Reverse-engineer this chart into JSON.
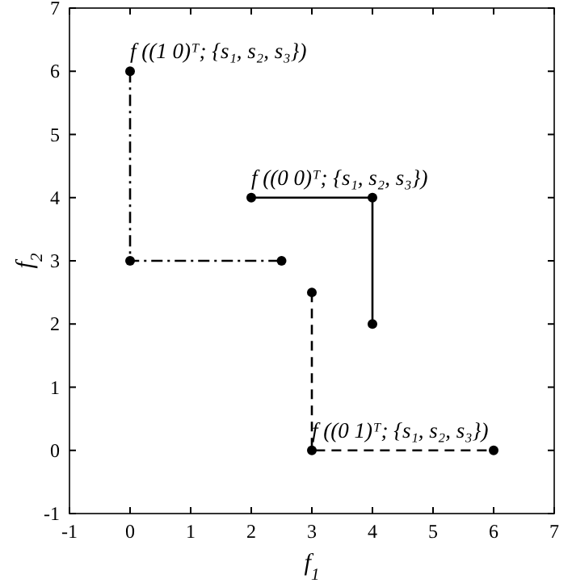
{
  "chart_data": {
    "type": "line",
    "xlabel": "f$_{1}$",
    "ylabel": "f$_{2}$",
    "xlim": [
      -1,
      7
    ],
    "ylim": [
      -1,
      7
    ],
    "xticks": [
      -1,
      0,
      1,
      2,
      3,
      4,
      5,
      6,
      7
    ],
    "yticks": [
      -1,
      0,
      1,
      2,
      3,
      4,
      5,
      6,
      7
    ],
    "grid": false,
    "marker": "circle",
    "series": [
      {
        "color": "#000000",
        "x": [
          0,
          0,
          2.5
        ],
        "values": [
          6,
          3,
          3
        ],
        "line_style": "dashdot"
      },
      {
        "color": "#000000",
        "x": [
          2,
          4,
          4
        ],
        "values": [
          4,
          4,
          2
        ],
        "line_style": "solid"
      },
      {
        "color": "#000000",
        "x": [
          3,
          3,
          6
        ],
        "values": [
          2.5,
          0,
          0
        ],
        "line_style": "dashed"
      }
    ],
    "annotations": [
      {
        "text": "f ((1 0)ᵀ; {s₁, s₂, s₃})",
        "x": 0,
        "y": 6
      },
      {
        "text": "f ((0 0)ᵀ; {s₁, s₂, s₃})",
        "x": 2,
        "y": 4
      },
      {
        "text": "f ((0 1)ᵀ; {s₁, s₂, s₃})",
        "x": 3,
        "y": 0
      }
    ]
  }
}
